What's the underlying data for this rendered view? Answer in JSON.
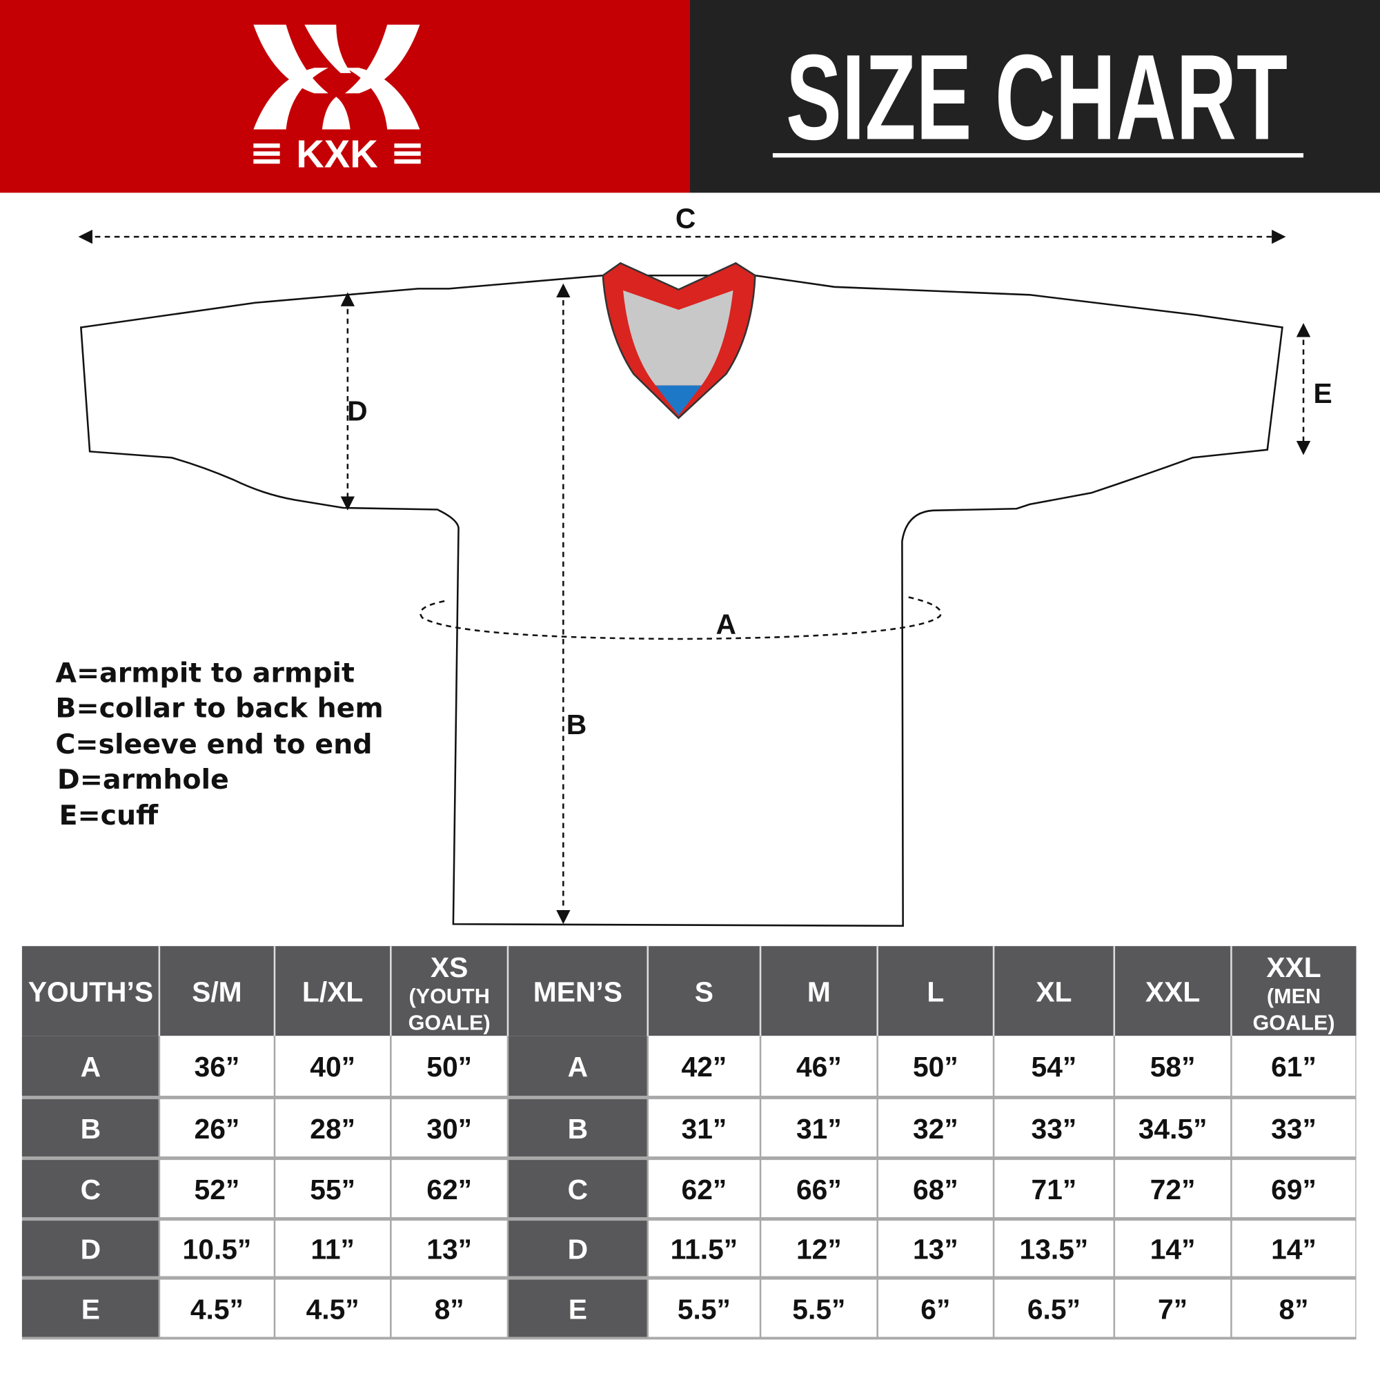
{
  "brand": {
    "logo_text": "KXK",
    "accent": "#c40005",
    "dark": "#222222"
  },
  "title": "SIZE CHART",
  "diagram": {
    "labels": {
      "a": "A",
      "b": "B",
      "c": "C",
      "d": "D",
      "e": "E"
    },
    "legend": [
      "A=armpit to armpit",
      "B=collar to back hem",
      "C=sleeve end to end",
      "D=armhole",
      "E=cuff"
    ]
  },
  "table": {
    "headers": [
      [
        "YOUTH’S"
      ],
      [
        "S/M"
      ],
      [
        "L/XL"
      ],
      [
        "XS",
        "(YOUTH",
        "GOALE)"
      ],
      [
        "MEN’S"
      ],
      [
        "S"
      ],
      [
        "M"
      ],
      [
        "L"
      ],
      [
        "XL"
      ],
      [
        "XXL"
      ],
      [
        "XXL",
        "(MEN",
        "GOALE)"
      ]
    ],
    "rows": [
      [
        "A",
        "36”",
        "40”",
        "50”",
        "A",
        "42”",
        "46”",
        "50”",
        "54”",
        "58”",
        "61”"
      ],
      [
        "B",
        "26”",
        "28”",
        "30”",
        "B",
        "31”",
        "31”",
        "32”",
        "33”",
        "34.5”",
        "33”"
      ],
      [
        "C",
        "52”",
        "55”",
        "62”",
        "C",
        "62”",
        "66”",
        "68”",
        "71”",
        "72”",
        "69”"
      ],
      [
        "D",
        "10.5”",
        "11”",
        "13”",
        "D",
        "11.5”",
        "12”",
        "13”",
        "13.5”",
        "14”",
        "14”"
      ],
      [
        "E",
        "4.5”",
        "4.5”",
        "8”",
        "E",
        "5.5”",
        "5.5”",
        "6”",
        "6.5”",
        "7”",
        "8”"
      ]
    ]
  }
}
